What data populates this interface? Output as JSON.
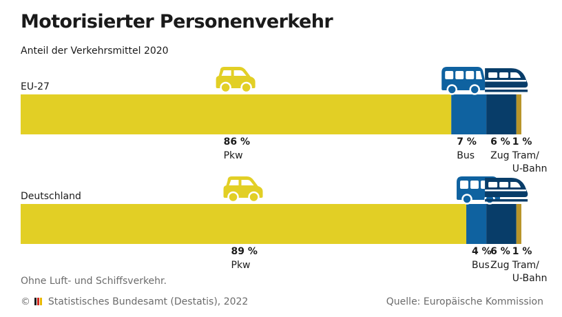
{
  "title": "Motorisierter Personenverkehr",
  "subtitle": "Anteil der Verkehrsmittel 2020",
  "note": "Ohne Luft- und Schiffsverkehr.",
  "footer": {
    "copyright_symbol": "©",
    "publisher": "Statistisches Bundesamt (Destatis), 2022",
    "source": "Quelle: Europäische Kommission",
    "flag_colors": [
      "#1a1a1a",
      "#d0261d",
      "#e8b800"
    ]
  },
  "colors": {
    "pkw": "#e2cf25",
    "bus": "#0f62a0",
    "zug": "#083d69",
    "tram": "#b8952a",
    "car_icon": "#e2cf25",
    "bus_icon": "#0f62a0",
    "train_icon": "#083d69"
  },
  "icons": [
    "car-icon",
    "bus-icon",
    "train-icon"
  ],
  "chart_data": {
    "type": "bar",
    "orientation": "horizontal",
    "stacked": true,
    "unit": "%",
    "categories": [
      "EU-27",
      "Deutschland"
    ],
    "series": [
      {
        "name": "Pkw",
        "values": [
          86,
          89
        ],
        "value_labels": [
          "86 %",
          "89 %"
        ]
      },
      {
        "name": "Bus",
        "values": [
          7,
          4
        ],
        "value_labels": [
          "7 %",
          "4 %"
        ]
      },
      {
        "name": "Zug",
        "values": [
          6,
          6
        ],
        "value_labels": [
          "6 %",
          "6 %"
        ]
      },
      {
        "name": "Tram/\nU-Bahn",
        "values": [
          1,
          1
        ],
        "value_labels": [
          "1 %",
          "1 %"
        ]
      }
    ],
    "xlim": [
      0,
      100
    ],
    "grid": false,
    "legend": "labels below bars"
  }
}
